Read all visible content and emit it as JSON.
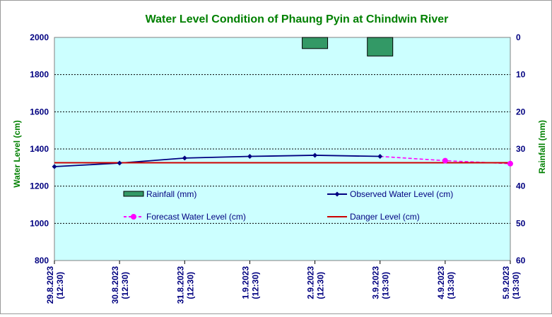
{
  "chart_data": {
    "type": "line",
    "title": "Water Level Condition of Phaung Pyin at Chindwin River",
    "ylabel": "Water Level (cm)",
    "y2label": "Rainfall (mm)",
    "ylim": [
      800,
      2000
    ],
    "yticks": [
      800,
      1000,
      1200,
      1400,
      1600,
      1800,
      2000
    ],
    "y2lim": [
      0,
      60
    ],
    "y2reversed": true,
    "y2ticks": [
      0,
      10,
      20,
      30,
      40,
      50,
      60
    ],
    "grid": true,
    "legend_position": "inside-lower",
    "categories": [
      [
        "29.8.2023",
        "(12:30)"
      ],
      [
        "30.8.2023",
        "(12:30)"
      ],
      [
        "31.8.2023",
        "(12:30)"
      ],
      [
        "1.9.2023",
        "(12:30)"
      ],
      [
        "2.9.2023",
        "(12:30)"
      ],
      [
        "3.9.2023",
        "(13:30)"
      ],
      [
        "4.9.2023",
        "(13:30)"
      ],
      [
        "5.9.2023",
        "(13:30)"
      ]
    ],
    "series": [
      {
        "name": "Rainfall (mm)",
        "kind": "bar",
        "axis": "right",
        "color": "#339966",
        "values": [
          0,
          0,
          0,
          0,
          3,
          5,
          0,
          0
        ]
      },
      {
        "name": "Observed Water Level (cm)",
        "kind": "line",
        "axis": "left",
        "color": "#000080",
        "marker": "diamond",
        "values": [
          1305,
          1324,
          1351,
          1360,
          1366,
          1360,
          null,
          null
        ]
      },
      {
        "name": "Forecast Water Level (cm)",
        "kind": "line",
        "axis": "left",
        "color": "#ff00ff",
        "dashed": true,
        "marker": "circle",
        "values": [
          null,
          null,
          null,
          null,
          null,
          1360,
          1337,
          1321
        ]
      },
      {
        "name": "Danger Level (cm)",
        "kind": "line",
        "axis": "left",
        "color": "#cc0000",
        "values": [
          1326,
          1326,
          1326,
          1326,
          1326,
          1326,
          1326,
          1326
        ]
      }
    ]
  },
  "colors": {
    "plot_background": "#ccffff",
    "title": "#008000",
    "axis_text": "#000080"
  }
}
